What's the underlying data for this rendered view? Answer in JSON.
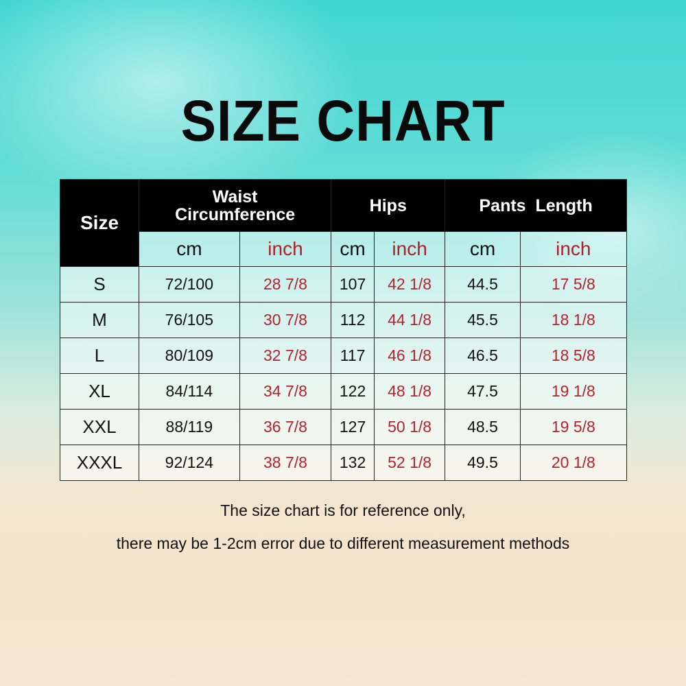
{
  "title": "SIZE CHART",
  "table": {
    "size_header": "Size",
    "groups": [
      "Waist Circumference",
      "Hips",
      "Pants  Length"
    ],
    "waist_line1": "Waist",
    "waist_line2": "Circumference",
    "units": [
      "cm",
      "inch",
      "cm",
      "inch",
      "cm",
      "inch"
    ],
    "rows": [
      [
        "S",
        "72/100",
        "28 7/8",
        "107",
        "42 1/8",
        "44.5",
        "17 5/8"
      ],
      [
        "M",
        "76/105",
        "30 7/8",
        "112",
        "44 1/8",
        "45.5",
        "18 1/8"
      ],
      [
        "L",
        "80/109",
        "32 7/8",
        "117",
        "46 1/8",
        "46.5",
        "18 5/8"
      ],
      [
        "XL",
        "84/114",
        "34 7/8",
        "122",
        "48 1/8",
        "47.5",
        "19 1/8"
      ],
      [
        "XXL",
        "88/119",
        "36 7/8",
        "127",
        "50 1/8",
        "48.5",
        "19 5/8"
      ],
      [
        "XXXL",
        "92/124",
        "38 7/8",
        "132",
        "52 1/8",
        "49.5",
        "20 1/8"
      ]
    ]
  },
  "notes": [
    "The size chart is for reference only,",
    "there may be 1-2cm error due to different measurement methods"
  ],
  "colors": {
    "header_bg": "#000000",
    "inch_text": "#b4222d"
  }
}
